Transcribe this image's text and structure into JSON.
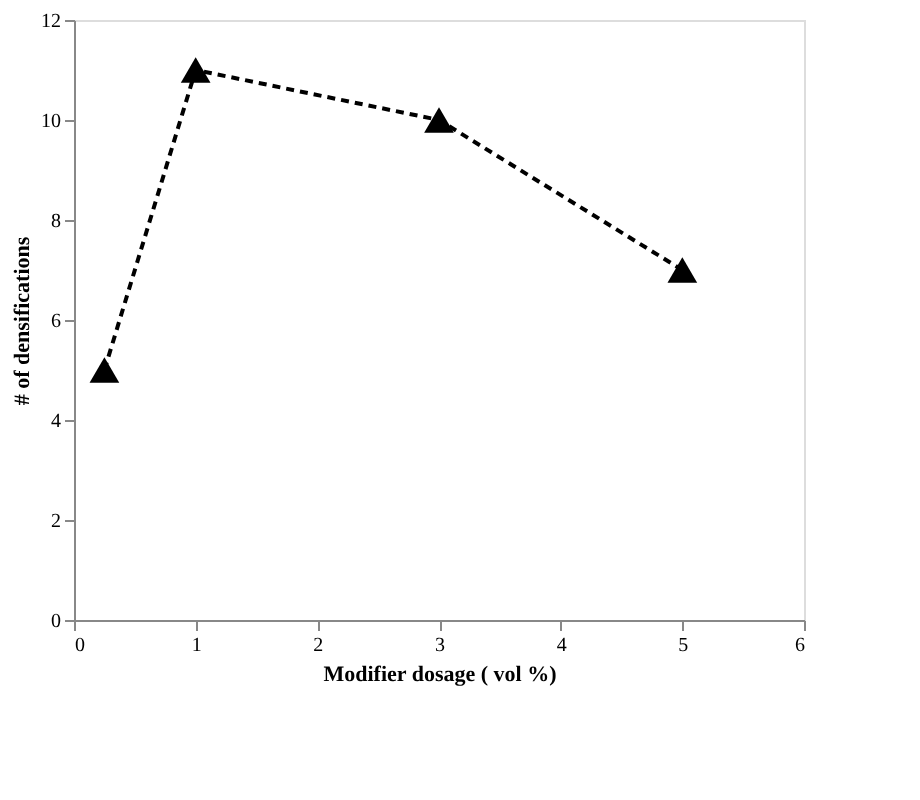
{
  "chart_data": {
    "type": "line",
    "xlabel": "Modifier dosage ( vol %)",
    "ylabel": "# of densifications",
    "x": [
      0.25,
      1,
      3,
      5
    ],
    "series": [
      {
        "color": "#000000",
        "values": [
          5,
          11,
          10,
          7
        ]
      }
    ],
    "xlim": [
      0,
      6
    ],
    "xticks": [
      0,
      1,
      2,
      3,
      4,
      5,
      6
    ],
    "ylim": [
      0,
      12
    ],
    "yticks": [
      0,
      2,
      4,
      6,
      8,
      10,
      12
    ],
    "grid": false,
    "marker": "triangle",
    "line_style": "dashed"
  }
}
